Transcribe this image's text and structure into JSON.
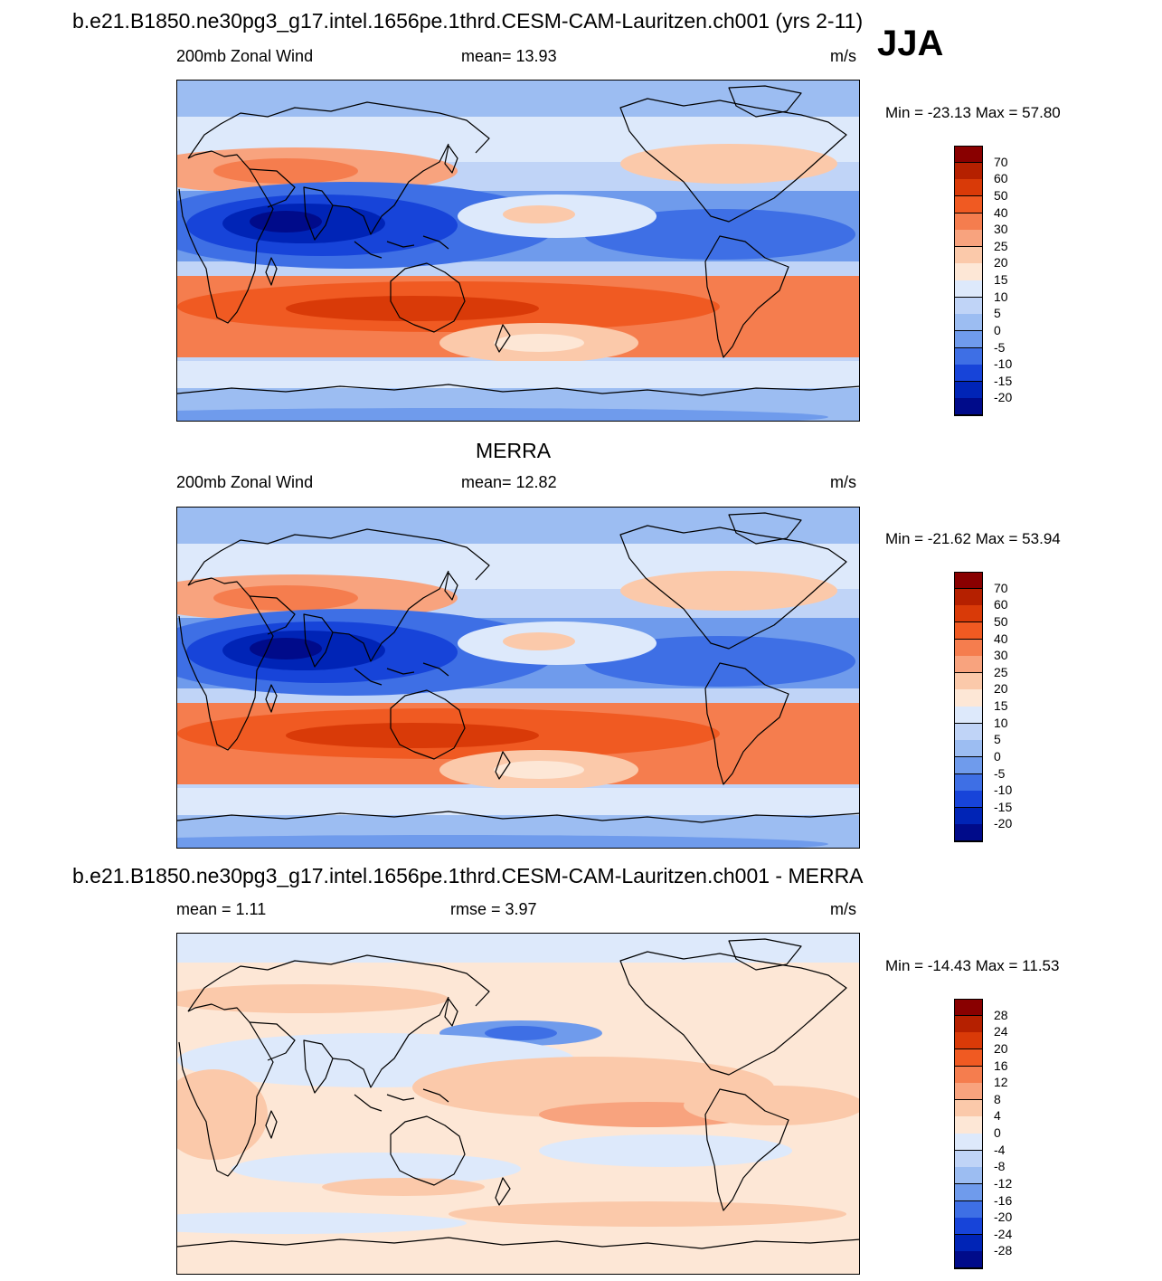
{
  "page": {
    "season": "JJA"
  },
  "panels": [
    {
      "title": "b.e21.B1850.ne30pg3_g17.intel.1656pe.1thrd.CESM-CAM-Lauritzen.ch001 (yrs 2-11)",
      "left_label": "200mb Zonal Wind",
      "center_label": "mean=  13.93",
      "right_label": "m/s",
      "minmax": "Min = -23.13 Max =  57.80",
      "colorbar_labels": [
        "70",
        "60",
        "50",
        "40",
        "30",
        "25",
        "20",
        "15",
        "10",
        "5",
        "0",
        "-5",
        "-10",
        "-15",
        "-20"
      ],
      "colors": [
        "#890000",
        "#b52000",
        "#d93a08",
        "#f05a22",
        "#f57d4e",
        "#f8a37e",
        "#fbc9aa",
        "#fde7d6",
        "#dde9fb",
        "#c0d4f7",
        "#9cbdf2",
        "#6f9bec",
        "#3e6fe5",
        "#1744d9",
        "#0024b6",
        "#000b8a"
      ]
    },
    {
      "title": "MERRA",
      "left_label": "200mb Zonal Wind",
      "center_label": "mean=  12.82",
      "right_label": "m/s",
      "minmax": "Min = -21.62 Max =  53.94",
      "colorbar_labels": [
        "70",
        "60",
        "50",
        "40",
        "30",
        "25",
        "20",
        "15",
        "10",
        "5",
        "0",
        "-5",
        "-10",
        "-15",
        "-20"
      ],
      "colors": [
        "#890000",
        "#b52000",
        "#d93a08",
        "#f05a22",
        "#f57d4e",
        "#f8a37e",
        "#fbc9aa",
        "#fde7d6",
        "#dde9fb",
        "#c0d4f7",
        "#9cbdf2",
        "#6f9bec",
        "#3e6fe5",
        "#1744d9",
        "#0024b6",
        "#000b8a"
      ]
    },
    {
      "title": "b.e21.B1850.ne30pg3_g17.intel.1656pe.1thrd.CESM-CAM-Lauritzen.ch001 - MERRA",
      "left_label": "mean =   1.11",
      "center_label": "rmse =   3.97",
      "right_label": "m/s",
      "minmax": "Min = -14.43 Max =  11.53",
      "colorbar_labels": [
        "28",
        "24",
        "20",
        "16",
        "12",
        "8",
        "4",
        "0",
        "-4",
        "-8",
        "-12",
        "-16",
        "-20",
        "-24",
        "-28"
      ],
      "colors": [
        "#890000",
        "#b52000",
        "#d93a08",
        "#f05a22",
        "#f57d4e",
        "#f8a37e",
        "#fbc9aa",
        "#fde7d6",
        "#dde9fb",
        "#c0d4f7",
        "#9cbdf2",
        "#6f9bec",
        "#3e6fe5",
        "#1744d9",
        "#0024b6",
        "#000b8a"
      ]
    }
  ]
}
